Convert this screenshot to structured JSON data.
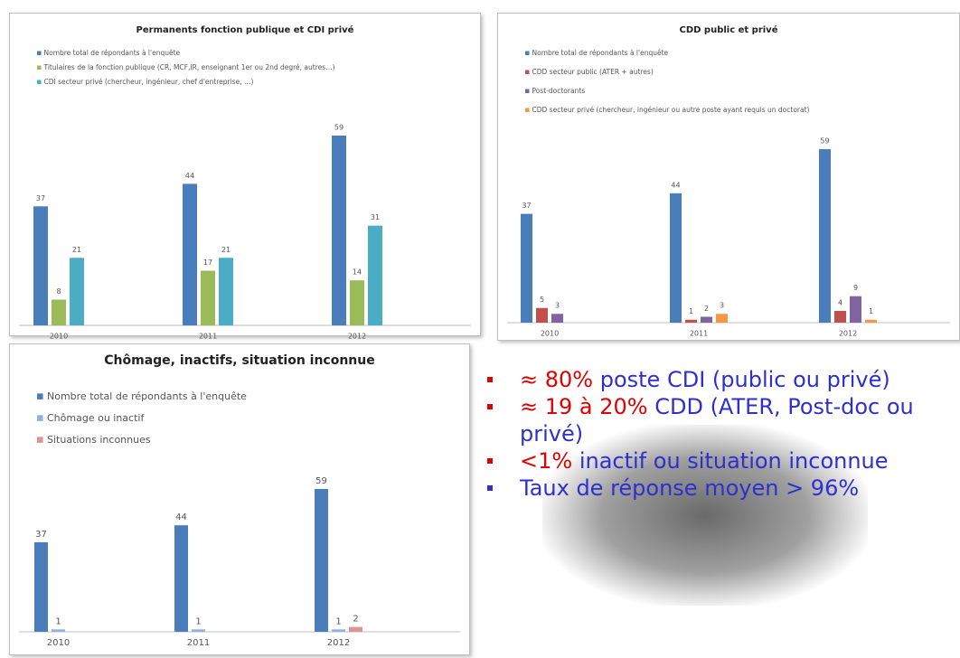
{
  "chart_data": [
    {
      "type": "bar",
      "title": "Permanents fonction publique et CDI privé",
      "categories": [
        "2010",
        "2011",
        "2012"
      ],
      "series": [
        {
          "name": "Nombre total de répondants à l'enquête",
          "color": "#4a7ebb",
          "values": [
            37,
            44,
            59
          ]
        },
        {
          "name": "Titulaires de la fonction publique (CR, MCF,IR, enseignant 1er ou 2nd degré, autres…)",
          "color": "#9bbb59",
          "values": [
            8,
            17,
            14
          ]
        },
        {
          "name": "CDI secteur privé (chercheur, ingénieur, chef d'entreprise, …)",
          "color": "#4bacc6",
          "values": [
            21,
            21,
            31
          ]
        }
      ]
    },
    {
      "type": "bar",
      "title": "CDD public et privé",
      "categories": [
        "2010",
        "2011",
        "2012"
      ],
      "series": [
        {
          "name": "Nombre total de répondants à l'enquête",
          "color": "#4a7ebb",
          "values": [
            37,
            44,
            59
          ]
        },
        {
          "name": "CDD secteur public (ATER + autres)",
          "color": "#c0504d",
          "values": [
            5,
            1,
            4
          ]
        },
        {
          "name": "Post-doctorants",
          "color": "#8064a2",
          "values": [
            3,
            2,
            9
          ]
        },
        {
          "name": "CDD secteur privé (chercheur, ingénieur ou autre poste ayant requis un doctorat)",
          "color": "#f79646",
          "values": [
            null,
            3,
            1
          ]
        }
      ]
    },
    {
      "type": "bar",
      "title": "Chômage, inactifs, situation inconnue",
      "categories": [
        "2010",
        "2011",
        "2012"
      ],
      "series": [
        {
          "name": "Nombre total de répondants à l'enquête",
          "color": "#4a7ebb",
          "values": [
            37,
            44,
            59
          ]
        },
        {
          "name": "Chômage ou inactif",
          "color": "#95b3d7",
          "values": [
            1,
            1,
            1
          ]
        },
        {
          "name": "Situations inconnues",
          "color": "#d99694",
          "values": [
            null,
            null,
            2
          ]
        }
      ]
    }
  ],
  "bullets": [
    {
      "highlight": "≈ 80%",
      "text": " poste CDI (public ou privé)"
    },
    {
      "highlight": "≈ 19 à 20%",
      "text": " CDD (ATER, Post-doc ou privé)"
    },
    {
      "highlight": "<1%",
      "text": " inactif ou situation inconnue"
    },
    {
      "text": "Taux de réponse moyen > 96%"
    }
  ]
}
